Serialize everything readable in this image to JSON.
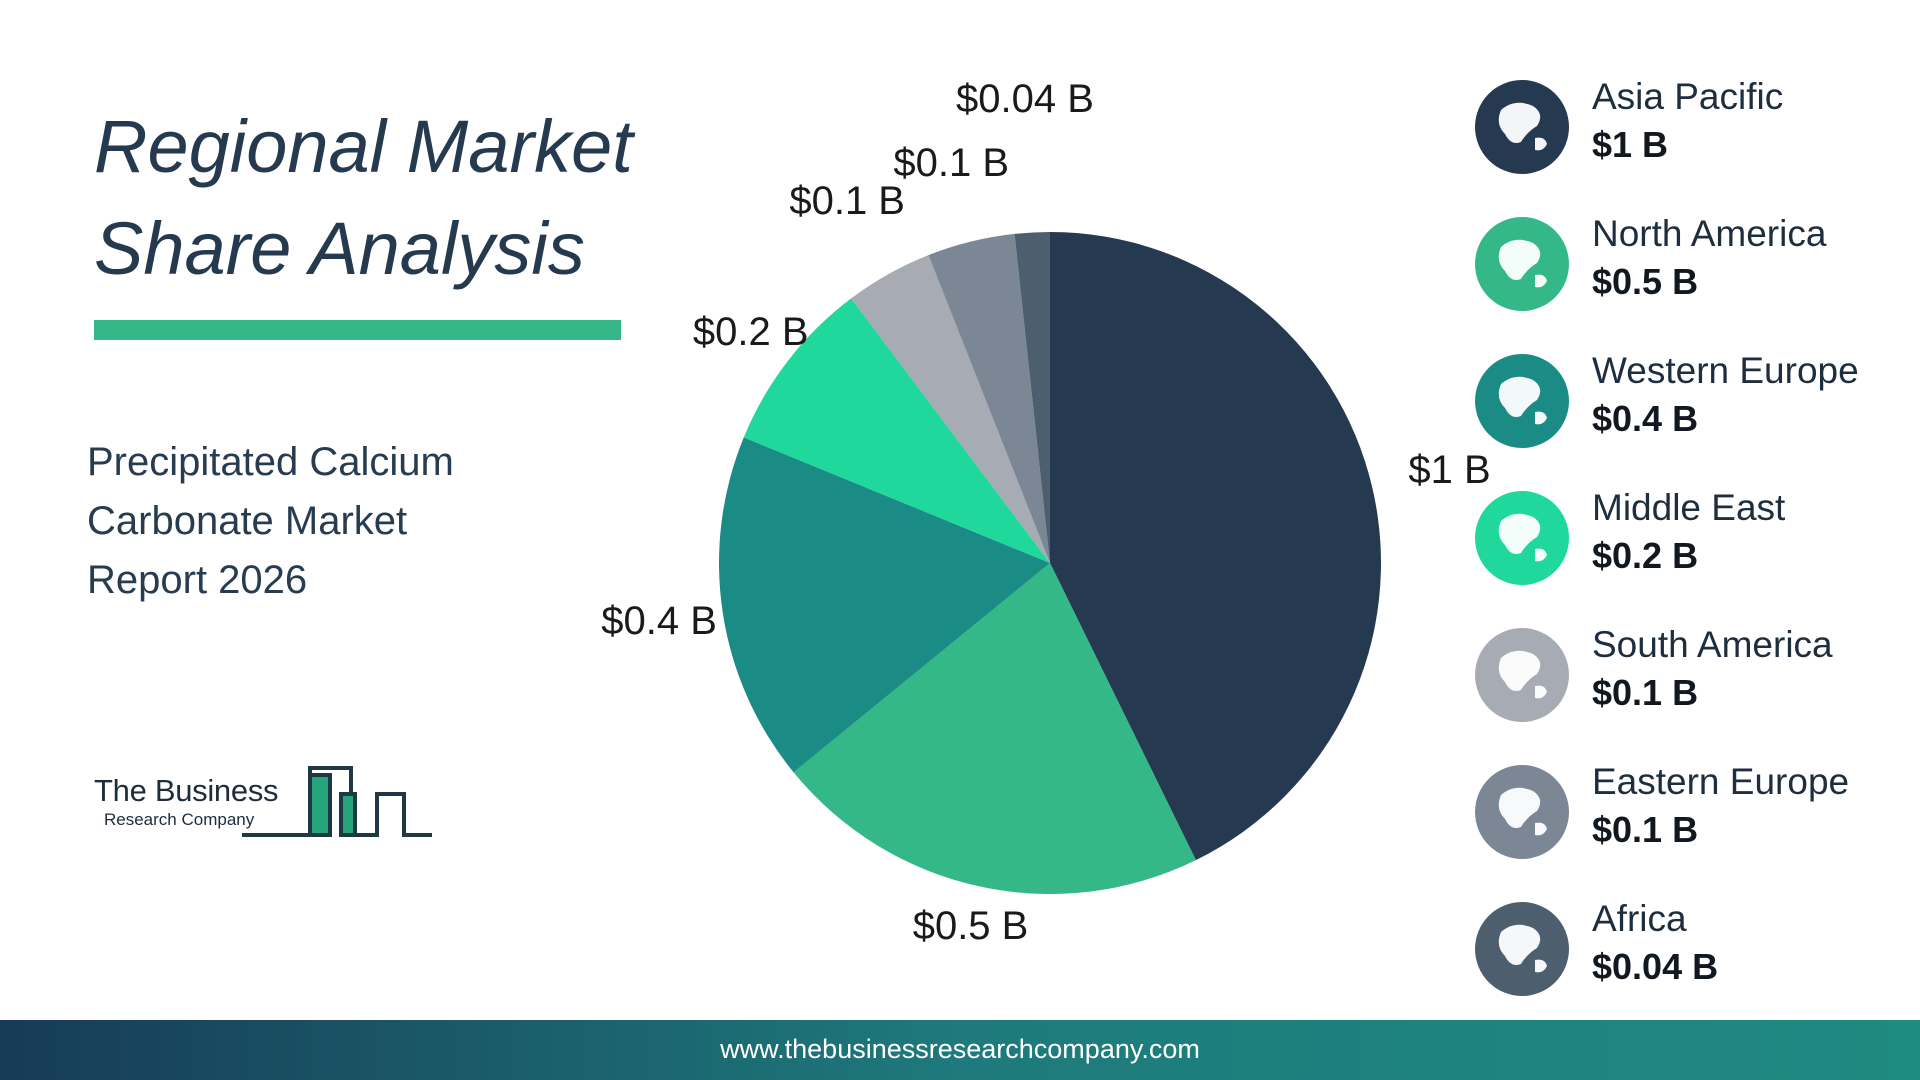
{
  "header": {
    "title_line1": "Regional Market",
    "title_line2": "Share Analysis",
    "accent_color": "#34b887"
  },
  "subtitle": {
    "line1": "Precipitated Calcium",
    "line2": "Carbonate Market",
    "line3": "Report 2026"
  },
  "logo": {
    "name": "The Business",
    "sub": "Research Company"
  },
  "footer": {
    "url": "www.thebusinessresearchcompany.com"
  },
  "chart_data": {
    "type": "pie",
    "categories": [
      "Asia Pacific",
      "North America",
      "Western Europe",
      "Middle East",
      "South America",
      "Eastern Europe",
      "Africa"
    ],
    "values": [
      1,
      0.5,
      0.4,
      0.2,
      0.1,
      0.1,
      0.04
    ],
    "unit": "$ B",
    "labels": [
      "$1 B",
      "$0.5 B",
      "$0.4 B",
      "$0.2 B",
      "$0.1 B",
      "$0.1 B",
      "$0.04 B"
    ],
    "colors": [
      "#253a50",
      "#34b887",
      "#1b8c85",
      "#20d89c",
      "#a6abb4",
      "#7b8794",
      "#4d5e6e"
    ],
    "legend_placement": "right"
  },
  "legend": {
    "items": [
      {
        "name": "Asia Pacific",
        "value": "$1 B",
        "icon": "asia-pacific-globe-icon",
        "color": "#253a50"
      },
      {
        "name": "North America",
        "value": "$0.5 B",
        "icon": "north-america-globe-icon",
        "color": "#34b887"
      },
      {
        "name": "Western Europe",
        "value": "$0.4 B",
        "icon": "western-europe-globe-icon",
        "color": "#1b8c85"
      },
      {
        "name": "Middle East",
        "value": "$0.2 B",
        "icon": "middle-east-globe-icon",
        "color": "#20d89c"
      },
      {
        "name": "South America",
        "value": "$0.1 B",
        "icon": "south-america-globe-icon",
        "color": "#a6abb4"
      },
      {
        "name": "Eastern Europe",
        "value": "$0.1 B",
        "icon": "eastern-europe-globe-icon",
        "color": "#7b8794"
      },
      {
        "name": "Africa",
        "value": "$0.04 B",
        "icon": "africa-globe-icon",
        "color": "#4d5e6e"
      }
    ]
  }
}
